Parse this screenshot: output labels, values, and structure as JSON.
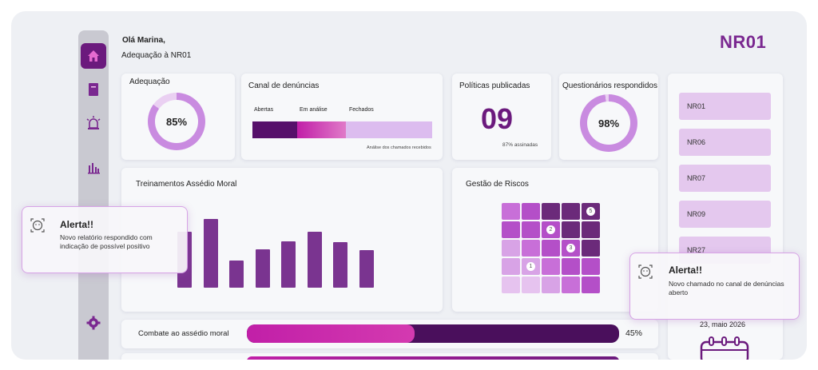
{
  "header": {
    "greeting": "Olá Marina,",
    "subtitle": "Adequação à NR01",
    "brand": "NR01"
  },
  "adequacao": {
    "title": "Adequação",
    "value": "85%",
    "percent": 85
  },
  "canal": {
    "title": "Canal de denúncias",
    "legend": [
      "Abertas",
      "Em análise",
      "Fechados"
    ],
    "shares": [
      0.25,
      0.27,
      0.48
    ],
    "caption": "Análise dos chamados recebidos"
  },
  "politicas": {
    "title": "Políticas publicadas",
    "value": "09",
    "caption": "87% assinadas"
  },
  "questionarios": {
    "title": "Questionários respondidos",
    "value": "98%",
    "percent": 98
  },
  "nr_list": [
    "NR01",
    "NR06",
    "NR07",
    "NR09",
    "NR27"
  ],
  "treinamentos": {
    "title": "Treinamentos Assédio Moral",
    "chart_data": {
      "type": "bar",
      "values": [
        70,
        86,
        34,
        48,
        58,
        70,
        57,
        47
      ],
      "ylim": [
        0,
        100
      ]
    }
  },
  "riscos": {
    "title": "Gestão de Riscos",
    "badges": [
      {
        "label": "5",
        "row": 0,
        "col": 4
      },
      {
        "label": "2",
        "row": 1,
        "col": 2
      },
      {
        "label": "3",
        "row": 2,
        "col": 3
      },
      {
        "label": "1",
        "row": 3,
        "col": 1
      }
    ]
  },
  "progress": {
    "label": "Combate ao assédio moral",
    "value": "45%",
    "percent": 45
  },
  "alert_left": {
    "title": "Alerta!!",
    "text": "Novo relatório respondido com indicação de possível positivo"
  },
  "alert_right": {
    "title": "Alerta!!",
    "text": "Novo chamado no canal de denúncias aberto"
  },
  "date": "23, maio 2026",
  "colors": {
    "primary": "#6b1a7d",
    "accent": "#c11fa8",
    "light": "#e4c8ee"
  },
  "icons": [
    "home-icon",
    "book-icon",
    "siren-icon",
    "bar-chart-icon",
    "gear-icon",
    "face-scan-icon",
    "calendar-icon"
  ]
}
